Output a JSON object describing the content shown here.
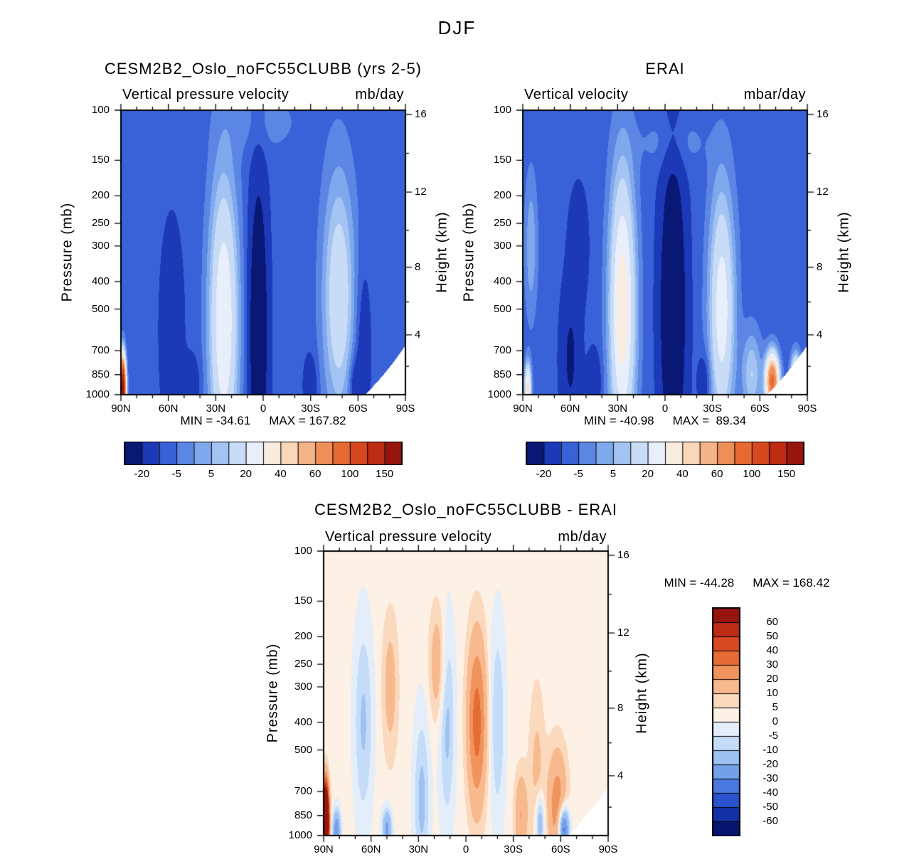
{
  "figure_title": "DJF",
  "chart_data": {
    "type": "heatmap",
    "description": "Three latitude-pressure filled-contour panels of DJF vertical pressure velocity: model, ERAI reanalysis, and model minus ERAI difference.",
    "levels": {
      "boundaries": [
        -20,
        -10,
        -5,
        0,
        5,
        10,
        20,
        30,
        40,
        50,
        60,
        80,
        100,
        125,
        150
      ],
      "colorbar_label_values": [
        "-20",
        "-5",
        "5",
        "20",
        "40",
        "60",
        "100",
        "150"
      ]
    },
    "palette_low_to_high": [
      "#081874",
      "#1c39b8",
      "#3a62d8",
      "#5c86e4",
      "#7ea9ec",
      "#a3c3f2",
      "#c8dcf7",
      "#e8effb",
      "#f8ecdf",
      "#f9d7b9",
      "#f5b488",
      "#ef8f58",
      "#e76a33",
      "#d8481f",
      "#bd2c13",
      "#98150e"
    ],
    "diff_levels": {
      "boundaries": [
        -60,
        -50,
        -40,
        -30,
        -20,
        -10,
        -5,
        0,
        5,
        10,
        20,
        30,
        40,
        50,
        60
      ],
      "colorbar_labels_top_to_bottom": [
        "60",
        "50",
        "40",
        "30",
        "20",
        "10",
        "5",
        "0",
        "-5",
        "-10",
        "-20",
        "-30",
        "-40",
        "-50",
        "-60"
      ]
    },
    "diff_palette_low_to_high": [
      "#08156e",
      "#1330a8",
      "#2a52cc",
      "#4a78e0",
      "#74a0ea",
      "#9dc2f2",
      "#c4dcf7",
      "#e4eefb",
      "#fdf0e4",
      "#fbd9bd",
      "#f7b98d",
      "#f0935c",
      "#e66c36",
      "#d74a22",
      "#bb2c15",
      "#97150e"
    ],
    "x_axis": {
      "major_tick_deg": 30,
      "minor_tick_deg": 10
    },
    "y_axis": {
      "scale": "log-pressure",
      "range_mb": [
        100,
        1000
      ]
    },
    "panels": [
      {
        "key": "model",
        "title": "CESM2B2_Oslo_noFC55CLUBB (yrs 2-5)",
        "subtitle": "Vertical pressure velocity",
        "units": "mb/day",
        "y_left_title": "Pressure (mb)",
        "y_right_title": "Height (km)",
        "pressure_ticks": [
          "100",
          "150",
          "200",
          "250",
          "300",
          "400",
          "500",
          "700",
          "850",
          "1000"
        ],
        "height_ticks": [
          "16",
          "12",
          "8",
          "4"
        ],
        "lat_ticks": [
          "90N",
          "60N",
          "30N",
          "0",
          "30S",
          "60S",
          "90S"
        ],
        "stat_min": "MIN = -34.61",
        "stat_max": "MAX = 167.82",
        "colorbar": "horizontal",
        "field_approx": {
          "base": -8,
          "blobs": [
            [
              25,
              550,
              9,
              0.5,
              38
            ],
            [
              3,
              600,
              5.5,
              0.5,
              -30
            ],
            [
              58,
              600,
              7,
              0.35,
              -9
            ],
            [
              -48,
              450,
              10,
              0.42,
              26
            ],
            [
              -63,
              700,
              5,
              0.3,
              -8
            ],
            [
              89,
              950,
              1.8,
              0.1,
              176
            ],
            [
              0,
              110,
              25,
              0.12,
              5
            ],
            [
              -30,
              925,
              4,
              0.1,
              -10
            ],
            [
              -58,
              925,
              4,
              0.1,
              -10
            ],
            [
              45,
              925,
              5,
              0.1,
              -8
            ]
          ]
        }
      },
      {
        "key": "erai",
        "title": "ERAI",
        "subtitle": "Vertical velocity",
        "units": "mbar/day",
        "y_left_title": "Pressure (mb)",
        "y_right_title": "Height (km)",
        "pressure_ticks": [
          "100",
          "150",
          "200",
          "250",
          "300",
          "400",
          "500",
          "700",
          "850",
          "1000"
        ],
        "height_ticks": [
          "16",
          "12",
          "8",
          "4"
        ],
        "lat_ticks": [
          "90N",
          "60N",
          "30N",
          "0",
          "30S",
          "60S",
          "90S"
        ],
        "stat_min": "MIN = -40.98",
        "stat_max": "MAX =  89.34",
        "colorbar": "horizontal",
        "field_approx": {
          "base": -8,
          "blobs": [
            [
              27,
              500,
              8,
              0.48,
              45
            ],
            [
              -5,
              500,
              7.5,
              0.5,
              -34
            ],
            [
              -36,
              500,
              8,
              0.42,
              34
            ],
            [
              60,
              750,
              6,
              0.25,
              -14
            ],
            [
              55,
              300,
              6,
              0.2,
              -8
            ],
            [
              -68,
              900,
              4,
              0.09,
              95
            ],
            [
              -83,
              900,
              3,
              0.08,
              60
            ],
            [
              87,
              950,
              2,
              0.08,
              50
            ],
            [
              -55,
              850,
              6,
              0.15,
              18
            ],
            [
              -5,
              130,
              20,
              0.1,
              6
            ],
            [
              45,
              900,
              4,
              0.1,
              -12
            ],
            [
              -25,
              900,
              4,
              0.1,
              -10
            ],
            [
              85,
              300,
              4,
              0.25,
              12
            ]
          ]
        }
      },
      {
        "key": "difference",
        "title": "CESM2B2_Oslo_noFC55CLUBB - ERAI",
        "subtitle": "Vertical pressure velocity",
        "units": "mb/day",
        "y_left_title": "Pressure (mb)",
        "y_right_title": "Height (km)",
        "pressure_ticks": [
          "100",
          "150",
          "200",
          "250",
          "300",
          "400",
          "500",
          "700",
          "850",
          "1000"
        ],
        "height_ticks": [
          "16",
          "12",
          "8",
          "4"
        ],
        "lat_ticks": [
          "90N",
          "60N",
          "30N",
          "0",
          "30S",
          "60S",
          "90S"
        ],
        "stat_min": "MIN = -44.28",
        "stat_max": "MAX = 168.42",
        "colorbar": "vertical",
        "field_approx": {
          "base": 2,
          "blobs": [
            [
              89,
              900,
              2,
              0.12,
              166
            ],
            [
              -7,
              400,
              6,
              0.3,
              33
            ],
            [
              -58,
              800,
              6,
              0.2,
              25
            ],
            [
              18,
              250,
              5,
              0.2,
              15
            ],
            [
              48,
              300,
              5,
              0.25,
              12
            ],
            [
              28,
              750,
              5,
              0.3,
              -14
            ],
            [
              65,
              400,
              6,
              0.35,
              -13
            ],
            [
              12,
              400,
              5,
              0.35,
              -14
            ],
            [
              -20,
              400,
              5,
              0.35,
              -12
            ],
            [
              -62,
              950,
              3.5,
              0.08,
              -46
            ],
            [
              50,
              950,
              3,
              0.07,
              -25
            ],
            [
              82,
              960,
              2.5,
              0.07,
              -30
            ],
            [
              -45,
              600,
              5,
              0.3,
              10
            ],
            [
              -35,
              850,
              4,
              0.15,
              18
            ],
            [
              -47,
              900,
              3,
              0.1,
              -22
            ]
          ]
        }
      }
    ]
  }
}
